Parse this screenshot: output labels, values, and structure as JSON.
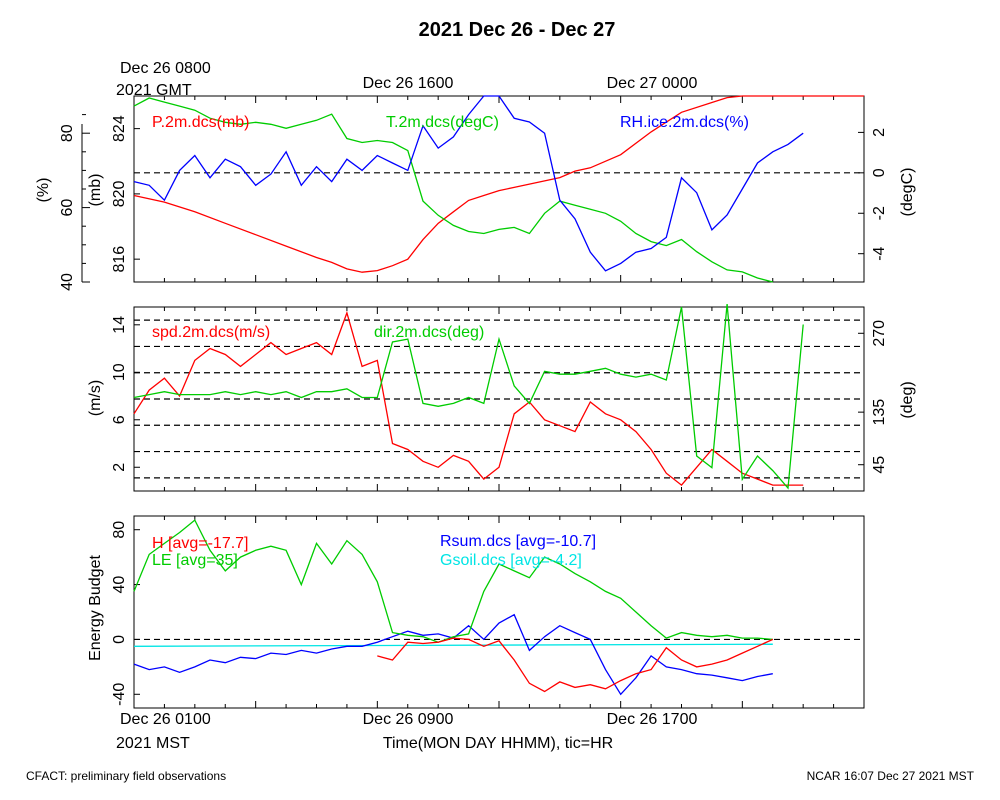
{
  "title": "2021 Dec 26 - Dec 27",
  "top_axis": {
    "first": [
      "Dec 26 0800",
      "2021 GMT"
    ],
    "labels": [
      "Dec 26 1600",
      "Dec 27 0000"
    ]
  },
  "bottom_axis": {
    "first": [
      "Dec 26 0100",
      "2021 MST"
    ],
    "labels": [
      "Dec 26 0900",
      "Dec 26 1700"
    ],
    "xlabel": "Time(MON DAY HHMM), tic=HR"
  },
  "footer": {
    "left": "CFACT: preliminary field observations",
    "right": "NCAR 16:07 Dec 27 2021 MST"
  },
  "colors": {
    "red": "#ff0000",
    "green": "#00cc00",
    "blue": "#0000ff",
    "cyan": "#00e5e5"
  },
  "chart_data": [
    {
      "type": "line",
      "name": "panel-1",
      "x_hours_mst_ticks": [
        "Dec 26 0100",
        "Dec 26 0900",
        "Dec 26 1700"
      ],
      "xlim_hours": [
        0,
        24
      ],
      "axes": {
        "pressure": {
          "label": "(mb)",
          "ticks": [
            816,
            820,
            824
          ],
          "lim": [
            814.6,
            826.0
          ]
        },
        "rh": {
          "label": "(%)",
          "ticks": [
            40,
            60,
            80
          ],
          "lim": [
            40,
            90
          ]
        },
        "temp": {
          "label": "(degC)",
          "ticks": [
            -4,
            -2,
            0,
            2
          ],
          "lim": [
            -5.4,
            3.8
          ]
        }
      },
      "zero_line_temp": 0,
      "series": [
        {
          "name": "P.2m.dcs(mb)",
          "color": "#ff0000",
          "axis": "pressure",
          "x": [
            0,
            1,
            2,
            3,
            4,
            5,
            6,
            6.5,
            7,
            7.5,
            8,
            8.5,
            9,
            9.5,
            10,
            10.5,
            11,
            11.5,
            12,
            12.5,
            13,
            14,
            14.5,
            15,
            16,
            17,
            18,
            19,
            19.5,
            20,
            21,
            22,
            23,
            24
          ],
          "values": [
            819.9,
            819.5,
            818.9,
            818.2,
            817.5,
            816.8,
            816.1,
            815.8,
            815.4,
            815.2,
            815.3,
            815.6,
            816.0,
            817.2,
            818.2,
            818.9,
            819.6,
            819.9,
            820.2,
            820.4,
            820.6,
            821.0,
            821.4,
            821.6,
            822.4,
            823.8,
            825.0,
            825.6,
            825.9,
            826.0,
            826.0,
            826.0,
            826.0,
            826.0
          ]
        },
        {
          "name": "T.2m.dcs(degC)",
          "color": "#00cc00",
          "axis": "temp",
          "x": [
            0,
            0.5,
            1,
            1.5,
            2,
            2.5,
            3,
            3.5,
            4,
            4.5,
            5,
            5.5,
            6,
            6.5,
            7,
            7.5,
            8,
            8.5,
            9,
            9.5,
            10,
            10.5,
            11,
            11.5,
            12,
            12.5,
            13,
            13.5,
            14,
            14.5,
            15,
            15.5,
            16,
            16.5,
            17,
            17.5,
            18,
            18.5,
            19,
            19.5,
            20,
            20.5,
            21
          ],
          "values": [
            3.3,
            3.7,
            3.5,
            3.3,
            3.1,
            2.7,
            2.5,
            2.4,
            2.5,
            2.4,
            2.2,
            2.4,
            2.6,
            2.9,
            1.7,
            1.5,
            1.6,
            1.5,
            1.1,
            -1.4,
            -2.1,
            -2.6,
            -2.9,
            -3.0,
            -2.8,
            -2.7,
            -3.0,
            -2.0,
            -1.4,
            -1.6,
            -1.8,
            -2.0,
            -2.4,
            -3.0,
            -3.4,
            -3.6,
            -3.3,
            -3.9,
            -4.4,
            -4.8,
            -4.9,
            -5.2,
            -5.4
          ]
        },
        {
          "name": "RH.ice.2m.dcs(%)",
          "color": "#0000ff",
          "axis": "rh",
          "x": [
            0,
            0.5,
            1,
            1.5,
            2,
            2.5,
            3,
            3.5,
            4,
            4.5,
            5,
            5.5,
            6,
            6.5,
            7,
            7.5,
            8,
            8.5,
            9,
            9.5,
            10,
            10.5,
            11,
            11.5,
            12,
            12.5,
            13,
            13.5,
            14,
            14.5,
            15,
            15.5,
            16,
            16.5,
            17,
            17.5,
            18,
            18.5,
            19,
            19.5,
            20,
            20.5,
            21,
            21.5,
            22
          ],
          "values": [
            67,
            66,
            62,
            70,
            74,
            68,
            73,
            71,
            66,
            69,
            75,
            66,
            71,
            67,
            73,
            70,
            74,
            72,
            70,
            82,
            76,
            79,
            85,
            90,
            90,
            84,
            83,
            80,
            62,
            57,
            48,
            43,
            45,
            48,
            49,
            52,
            68,
            64,
            54,
            58,
            65,
            72,
            75,
            77,
            80
          ]
        }
      ]
    },
    {
      "type": "line",
      "name": "panel-2",
      "xlim_hours": [
        0,
        24
      ],
      "axes": {
        "speed": {
          "label": "(m/s)",
          "ticks": [
            2,
            6,
            10,
            14
          ],
          "lim": [
            0,
            15.5
          ]
        },
        "dir": {
          "label": "(deg)",
          "ticks": [
            45,
            135,
            270
          ],
          "lim": [
            0,
            315
          ]
        }
      },
      "dir_reference_lines": [
        22.5,
        67.5,
        112.5,
        157.5,
        202.5,
        247.5,
        292.5
      ],
      "series": [
        {
          "name": "spd.2m.dcs(m/s)",
          "color": "#ff0000",
          "axis": "speed",
          "x": [
            0,
            0.5,
            1,
            1.5,
            2,
            2.5,
            3,
            3.5,
            4,
            4.5,
            5,
            5.5,
            6,
            6.5,
            7,
            7.5,
            8,
            8.5,
            9,
            9.5,
            10,
            10.5,
            11,
            11.5,
            12,
            12.5,
            13,
            13.5,
            14,
            14.5,
            15,
            15.5,
            16,
            16.5,
            17,
            17.5,
            18,
            18.5,
            19,
            19.5,
            20,
            20.5,
            21,
            21.5,
            22
          ],
          "values": [
            6.5,
            8.5,
            9.5,
            8.0,
            11.0,
            12.0,
            11.5,
            10.5,
            11.5,
            12.5,
            11.5,
            12.0,
            12.5,
            11.5,
            15.0,
            10.5,
            11.0,
            4.0,
            3.5,
            2.5,
            2.0,
            3.0,
            2.5,
            1.0,
            2.0,
            6.5,
            7.5,
            6.0,
            5.5,
            5.0,
            7.5,
            6.5,
            6.0,
            5.0,
            3.5,
            1.5,
            0.5,
            2.0,
            3.5,
            2.5,
            1.5,
            1.0,
            0.5,
            0.5,
            0.5
          ]
        },
        {
          "name": "dir.2m.dcs(deg)",
          "color": "#00cc00",
          "axis": "dir",
          "x": [
            0,
            0.5,
            1,
            1.5,
            2,
            2.5,
            3,
            3.5,
            4,
            4.5,
            5,
            5.5,
            6,
            6.5,
            7,
            7.5,
            8,
            8.5,
            9,
            9.5,
            10,
            10.5,
            11,
            11.5,
            12,
            12.5,
            13,
            13.5,
            14,
            14.5,
            15,
            15.5,
            16,
            16.5,
            17,
            17.5,
            18,
            18.5,
            19,
            19.5,
            20,
            20.5,
            21,
            21.5,
            22
          ],
          "values": [
            160,
            165,
            170,
            165,
            165,
            165,
            170,
            165,
            170,
            165,
            170,
            160,
            170,
            170,
            175,
            160,
            160,
            255,
            260,
            150,
            145,
            150,
            160,
            150,
            260,
            180,
            150,
            205,
            200,
            200,
            205,
            210,
            200,
            195,
            200,
            190,
            315,
            60,
            40,
            320,
            20,
            60,
            35,
            5,
            285
          ]
        }
      ]
    },
    {
      "type": "line",
      "name": "panel-3",
      "xlim_hours": [
        0,
        24
      ],
      "axes": {
        "energy": {
          "label": "Energy Budget",
          "ticks": [
            -40,
            0,
            40,
            80
          ],
          "lim": [
            -50,
            90
          ]
        }
      },
      "zero_line": 0,
      "series": [
        {
          "name": "H",
          "legend": "H [avg=-17.7]",
          "color": "#ff0000",
          "axis": "energy",
          "x": [
            8,
            8.5,
            9,
            9.5,
            10,
            10.5,
            11,
            11.5,
            12,
            12.5,
            13,
            13.5,
            14,
            14.5,
            15,
            15.5,
            16,
            16.5,
            17,
            17.5,
            18,
            18.5,
            19,
            19.5,
            20,
            20.5,
            21
          ],
          "values": [
            -12,
            -15,
            -2,
            -3,
            -2,
            1,
            0,
            -5,
            -1,
            -15,
            -32,
            -38,
            -31,
            -35,
            -33,
            -36,
            -30,
            -25,
            -22,
            -6,
            -15,
            -20,
            -18,
            -15,
            -10,
            -5,
            0
          ]
        },
        {
          "name": "LE",
          "legend": "LE [avg=35]",
          "color": "#00cc00",
          "axis": "energy",
          "x": [
            0,
            0.5,
            1,
            1.5,
            2,
            2.5,
            3,
            3.5,
            4,
            4.5,
            5,
            5.5,
            6,
            6.5,
            7,
            7.5,
            8,
            8.5,
            9,
            9.5,
            10,
            10.5,
            11,
            11.5,
            12,
            12.5,
            13,
            13.5,
            14,
            14.5,
            15,
            15.5,
            16,
            16.5,
            17,
            17.5,
            18,
            18.5,
            19,
            19.5,
            20,
            20.5,
            21
          ],
          "values": [
            35,
            62,
            70,
            78,
            87,
            65,
            50,
            60,
            65,
            68,
            65,
            40,
            70,
            55,
            72,
            62,
            42,
            5,
            3,
            2,
            -2,
            2,
            4,
            35,
            55,
            50,
            45,
            60,
            55,
            48,
            42,
            35,
            30,
            20,
            10,
            1,
            5,
            3,
            2,
            3,
            1,
            1,
            0
          ]
        },
        {
          "name": "Rsum.dcs",
          "legend": "Rsum.dcs [avg=-10.7]",
          "color": "#0000ff",
          "axis": "energy",
          "x": [
            0,
            0.5,
            1,
            1.5,
            2,
            2.5,
            3,
            3.5,
            4,
            4.5,
            5,
            5.5,
            6,
            6.5,
            7,
            7.5,
            8,
            8.5,
            9,
            9.5,
            10,
            10.5,
            11,
            11.5,
            12,
            12.5,
            13,
            13.5,
            14,
            14.5,
            15,
            15.5,
            16,
            16.5,
            17,
            17.5,
            18,
            18.5,
            19,
            19.5,
            20,
            20.5,
            21
          ],
          "values": [
            -18,
            -22,
            -20,
            -24,
            -20,
            -15,
            -17,
            -13,
            -14,
            -10,
            -11,
            -8,
            -10,
            -7,
            -5,
            -5,
            -2,
            2,
            6,
            3,
            4,
            1,
            10,
            0,
            12,
            18,
            -8,
            2,
            10,
            5,
            0,
            -22,
            -40,
            -28,
            -12,
            -20,
            -22,
            -25,
            -26,
            -28,
            -30,
            -27,
            -25
          ]
        },
        {
          "name": "Gsoil.dcs",
          "legend": "Gsoil.dcs [avg=-4.2]",
          "color": "#00e5e5",
          "axis": "energy",
          "x": [
            0,
            21
          ],
          "values": [
            -5,
            -3.5
          ]
        }
      ]
    }
  ]
}
